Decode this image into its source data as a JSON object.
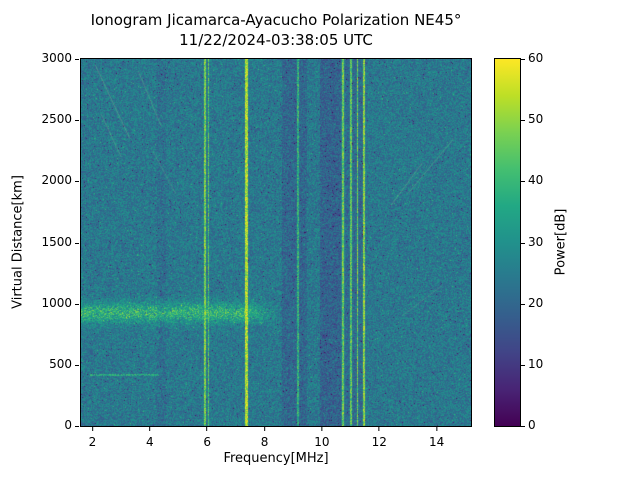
{
  "chart_data": {
    "type": "heatmap",
    "title": "Ionogram Jicamarca-Ayacucho Polarization NE45°",
    "subtitle": "11/22/2024-03:38:05 UTC",
    "xlabel": "Frequency[MHz]",
    "ylabel": "Virtual Distance[km]",
    "colorbar_label": "Power[dB]",
    "xlim": [
      1.6,
      15.2
    ],
    "ylim": [
      0,
      3000
    ],
    "clim": [
      0,
      60
    ],
    "xticks": [
      2,
      4,
      6,
      8,
      10,
      12,
      14
    ],
    "yticks": [
      0,
      500,
      1000,
      1500,
      2000,
      2500,
      3000
    ],
    "cticks": [
      0,
      10,
      20,
      30,
      40,
      50,
      60
    ],
    "background": {
      "mean_db": 24,
      "spread_db": 14,
      "dark_speckle_db": -14,
      "bright_speckle_db": 9
    },
    "echo_layer": {
      "center_km": 930,
      "width_km": 80,
      "min_freq_mhz": 1.6,
      "max_freq_mhz": 8.6,
      "boost_db": 15
    },
    "horizontal_streak": {
      "alt_km": 420,
      "from_mhz": 1.9,
      "to_mhz": 4.3,
      "power_db": 38
    },
    "rfi_lines": [
      {
        "freq_mhz": 5.9,
        "width_mhz": 0.08,
        "power_db": 47
      },
      {
        "freq_mhz": 6.02,
        "width_mhz": 0.05,
        "power_db": 43
      },
      {
        "freq_mhz": 7.35,
        "width_mhz": 0.1,
        "power_db": 52
      },
      {
        "freq_mhz": 9.15,
        "width_mhz": 0.04,
        "power_db": 38
      },
      {
        "freq_mhz": 10.72,
        "width_mhz": 0.06,
        "power_db": 46
      },
      {
        "freq_mhz": 11.0,
        "width_mhz": 0.05,
        "power_db": 44
      },
      {
        "freq_mhz": 11.22,
        "width_mhz": 0.05,
        "power_db": 46
      },
      {
        "freq_mhz": 11.45,
        "width_mhz": 0.08,
        "power_db": 49
      }
    ],
    "quiet_bands": [
      {
        "from_mhz": 4.25,
        "to_mhz": 4.55,
        "delta_db": -2
      },
      {
        "from_mhz": 8.6,
        "to_mhz": 9.45,
        "delta_db": -4
      },
      {
        "from_mhz": 9.9,
        "to_mhz": 10.65,
        "delta_db": -5
      },
      {
        "from_mhz": 10.8,
        "to_mhz": 11.4,
        "delta_db": -3
      }
    ],
    "diagonal_streaks": [
      {
        "from": [
          2.1,
          2950
        ],
        "to": [
          3.3,
          2350
        ],
        "alpha": 0.3
      },
      {
        "from": [
          2.3,
          2550
        ],
        "to": [
          3.0,
          2200
        ],
        "alpha": 0.25
      },
      {
        "from": [
          3.6,
          2900
        ],
        "to": [
          4.4,
          2450
        ],
        "alpha": 0.25
      },
      {
        "from": [
          4.1,
          2250
        ],
        "to": [
          4.9,
          1900
        ],
        "alpha": 0.2
      },
      {
        "from": [
          12.4,
          1800
        ],
        "to": [
          13.5,
          2150
        ],
        "alpha": 0.3
      },
      {
        "from": [
          13.0,
          1900
        ],
        "to": [
          14.6,
          2350
        ],
        "alpha": 0.25
      },
      {
        "from": [
          12.8,
          900
        ],
        "to": [
          14.2,
          1150
        ],
        "alpha": 0.2
      }
    ],
    "colormap": {
      "name": "viridis",
      "stops": [
        "#440154",
        "#482475",
        "#414487",
        "#355f8d",
        "#2a788e",
        "#21918c",
        "#22a884",
        "#44bf70",
        "#7ad151",
        "#bddf26",
        "#fde725"
      ]
    }
  }
}
